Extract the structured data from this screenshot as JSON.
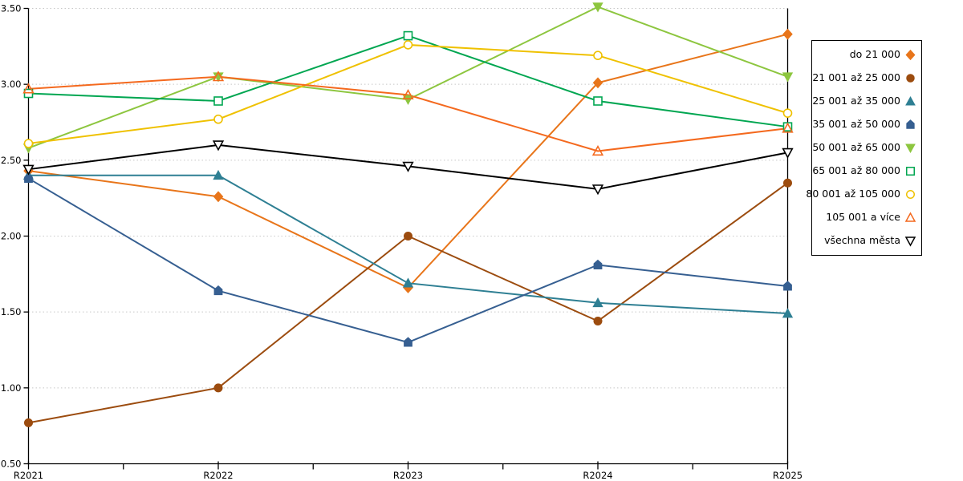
{
  "chart_data": {
    "type": "line",
    "title": "",
    "xlabel": "",
    "ylabel": "",
    "categories": [
      "R2021",
      "R2022",
      "R2023",
      "R2024",
      "R2025"
    ],
    "series": [
      {
        "name": "do 21 000",
        "marker": "diamond",
        "style": "filled",
        "color": "#E8751A",
        "values": [
          2.43,
          2.26,
          1.66,
          3.01,
          3.33
        ]
      },
      {
        "name": "21 001 až 25 000",
        "marker": "circle",
        "style": "filled",
        "color": "#9C4C0F",
        "values": [
          0.77,
          1.0,
          2.0,
          1.44,
          2.35
        ]
      },
      {
        "name": "25 001 až 35 000",
        "marker": "triangle-up",
        "style": "filled",
        "color": "#2E7F93",
        "values": [
          2.4,
          2.4,
          1.69,
          1.56,
          1.49
        ]
      },
      {
        "name": "35 001 až 50 000",
        "marker": "pentagon",
        "style": "filled",
        "color": "#365F91",
        "values": [
          2.38,
          1.64,
          1.3,
          1.81,
          1.67
        ]
      },
      {
        "name": "50 001 až 65 000",
        "marker": "triangle-down",
        "style": "filled",
        "color": "#8DC63F",
        "values": [
          2.58,
          3.05,
          2.9,
          3.51,
          3.05
        ]
      },
      {
        "name": "65 001 až 80 000",
        "marker": "square",
        "style": "hollow",
        "color": "#00A651",
        "values": [
          2.94,
          2.89,
          3.32,
          2.89,
          2.72
        ]
      },
      {
        "name": "80 001 až 105 000",
        "marker": "circle",
        "style": "hollow",
        "color": "#EFC100",
        "values": [
          2.61,
          2.77,
          3.26,
          3.19,
          2.81
        ]
      },
      {
        "name": "105 001 a více",
        "marker": "triangle-up",
        "style": "hollow",
        "color": "#F4691E",
        "values": [
          2.97,
          3.05,
          2.93,
          2.56,
          2.71
        ]
      },
      {
        "name": "všechna města",
        "marker": "triangle-down",
        "style": "hollow",
        "color": "#000000",
        "values": [
          2.44,
          2.6,
          2.46,
          2.31,
          2.55
        ]
      }
    ],
    "y_axis": {
      "min": 0.5,
      "max": 3.5,
      "step": 0.5,
      "tick_labels": [
        "0.50",
        "1.00",
        "1.50",
        "2.00",
        "2.50",
        "3.00",
        "3.50"
      ]
    },
    "x_axis": {
      "tick_labels": [
        "R2021",
        "R2022",
        "R2023",
        "R2024",
        "R2025"
      ],
      "minor_ticks_between": true
    },
    "grid": "horizontal-dotted",
    "legend_position": "right"
  },
  "colors": {
    "grid": "#C8C8C8",
    "axis": "#000000",
    "background": "#FFFFFF",
    "text": "#000000"
  }
}
